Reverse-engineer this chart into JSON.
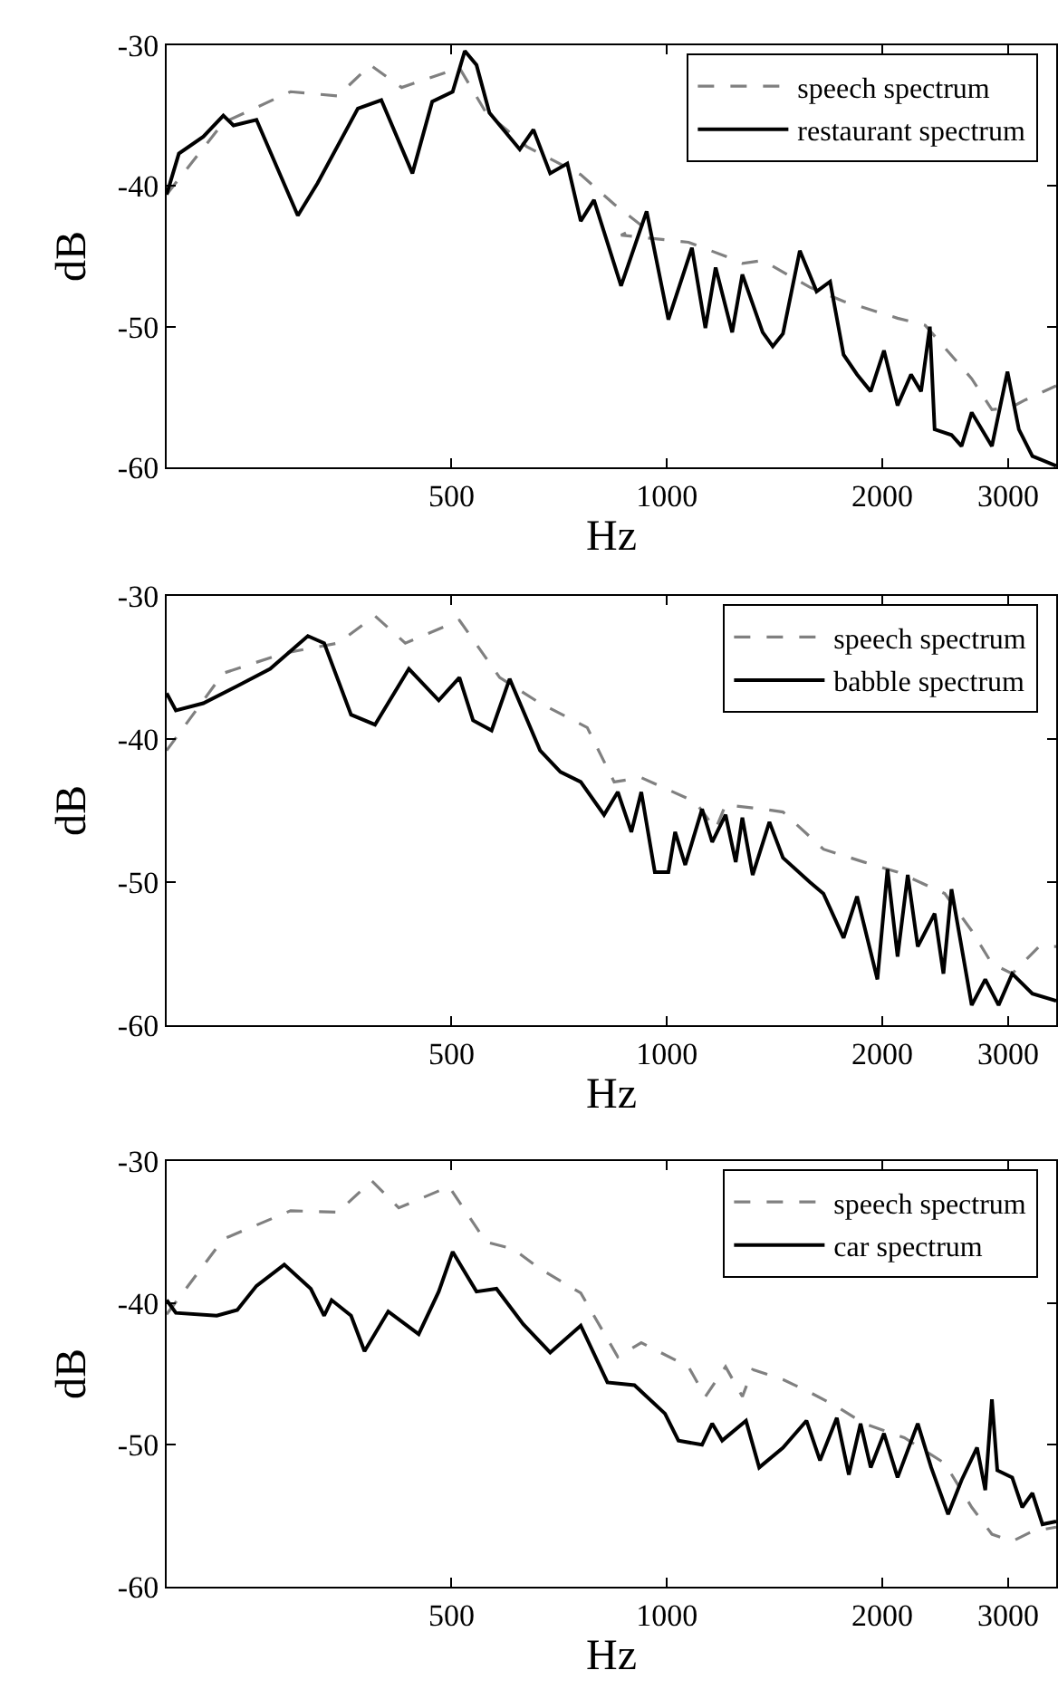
{
  "chart_data": [
    {
      "type": "line",
      "xlabel": "Hz",
      "ylabel": "dB",
      "log": "x",
      "grid": false,
      "legend": "top right",
      "xlim": [
        200,
        3500
      ],
      "xticks": [
        500,
        1000,
        2000,
        3000
      ],
      "ylim": [
        -60,
        -30
      ],
      "yticks": [
        -30,
        -40,
        -50,
        -60
      ],
      "series": [
        {
          "name": "speech spectrum",
          "color": "#808080",
          "line_style": "dashed",
          "x": [
            200,
            240,
            298,
            347,
            385,
            426,
            513,
            559,
            637,
            758,
            844,
            921,
            863,
            1072,
            1208,
            1275,
            1361,
            1584,
            1766,
            2101,
            2296,
            2667,
            2846,
            3038,
            3171,
            3500
          ],
          "values": [
            -40.6,
            -35.5,
            -33.3,
            -33.6,
            -31.4,
            -33,
            -31.6,
            -34.8,
            -37.2,
            -39.2,
            -41.3,
            -42.8,
            -43.5,
            -44,
            -45,
            -45.5,
            -45.3,
            -47.2,
            -48.2,
            -49.4,
            -49.9,
            -53.7,
            -55.9,
            -55.7,
            -55.2,
            -54.2
          ]
        },
        {
          "name": "restaurant spectrum",
          "color": "#000000",
          "line_style": "solid",
          "x": [
            200,
            208,
            225,
            240,
            248,
            267,
            305,
            325,
            370,
            399,
            441,
            470,
            502,
            522,
            542,
            565,
            623,
            651,
            687,
            726,
            758,
            791,
            863,
            937,
            1005,
            1084,
            1132,
            1170,
            1234,
            1275,
            1361,
            1406,
            1453,
            1534,
            1619,
            1691,
            1766,
            1844,
            1927,
            2011,
            2101,
            2194,
            2266,
            2331,
            2367,
            2499,
            2581,
            2667,
            2846,
            2992,
            3104,
            3242,
            3500
          ],
          "values": [
            -40.6,
            -37.7,
            -36.5,
            -35,
            -35.7,
            -35.3,
            -42.1,
            -39.8,
            -34.5,
            -33.9,
            -39.1,
            -34,
            -33.3,
            -30.4,
            -31.4,
            -34.8,
            -37.4,
            -36,
            -39.1,
            -38.4,
            -42.5,
            -41,
            -47.1,
            -41.8,
            -49.5,
            -44.4,
            -50.1,
            -45.8,
            -50.4,
            -46.3,
            -50.4,
            -51.4,
            -50.5,
            -44.6,
            -47.5,
            -46.8,
            -52,
            -53.4,
            -54.6,
            -51.7,
            -55.6,
            -53.4,
            -54.6,
            -50,
            -57.3,
            -57.7,
            -58.5,
            -56.1,
            -58.5,
            -53.2,
            -57.3,
            -59.2,
            -59.9
          ]
        }
      ]
    },
    {
      "type": "line",
      "xlabel": "Hz",
      "ylabel": "dB",
      "log": "x",
      "grid": false,
      "legend": "top right",
      "xlim": [
        200,
        3500
      ],
      "xticks": [
        500,
        1000,
        2000,
        3000
      ],
      "ylim": [
        -60,
        -30
      ],
      "yticks": [
        -30,
        -40,
        -50,
        -60
      ],
      "series": [
        {
          "name": "speech spectrum",
          "color": "#808080",
          "line_style": "dashed",
          "x": [
            200,
            240,
            292,
            347,
            391,
            431,
            513,
            584,
            665,
            774,
            844,
            921,
            1096,
            1170,
            1208,
            1361,
            1453,
            1655,
            1885,
            2101,
            2445,
            2667,
            2846,
            3038,
            3313,
            3500
          ],
          "values": [
            -40.8,
            -35.4,
            -34,
            -33.3,
            -31.4,
            -33.3,
            -31.7,
            -35.7,
            -37.5,
            -39.2,
            -43,
            -42.7,
            -44.4,
            -46.3,
            -44.6,
            -44.9,
            -45.1,
            -47.7,
            -48.6,
            -49.3,
            -50.8,
            -53.4,
            -55.7,
            -56.4,
            -54.5,
            -54.5
          ]
        },
        {
          "name": "babble spectrum",
          "color": "#000000",
          "line_style": "solid",
          "x": [
            200,
            206,
            225,
            251,
            279,
            315,
            332,
            362,
            391,
            436,
            480,
            513,
            536,
            569,
            603,
            665,
            710,
            758,
            817,
            854,
            892,
            921,
            962,
            1005,
            1027,
            1061,
            1120,
            1157,
            1208,
            1248,
            1275,
            1318,
            1391,
            1453,
            1584,
            1655,
            1766,
            1844,
            1969,
            2034,
            2101,
            2171,
            2242,
            2367,
            2435,
            2499,
            2667,
            2786,
            2908,
            3038,
            3242,
            3500
          ],
          "values": [
            -36.8,
            -38,
            -37.5,
            -36.3,
            -35.1,
            -32.8,
            -33.3,
            -38.3,
            -39,
            -35.1,
            -37.3,
            -35.7,
            -38.7,
            -39.4,
            -35.8,
            -40.8,
            -42.3,
            -43,
            -45.3,
            -43.7,
            -46.5,
            -43.7,
            -49.3,
            -49.3,
            -46.5,
            -48.8,
            -44.9,
            -47.2,
            -45.3,
            -48.6,
            -45.5,
            -49.5,
            -45.8,
            -48.3,
            -50,
            -50.8,
            -53.9,
            -51,
            -56.8,
            -49.1,
            -55.2,
            -49.5,
            -54.5,
            -52.2,
            -56.4,
            -50.5,
            -58.6,
            -56.8,
            -58.6,
            -56.4,
            -57.8,
            -58.3
          ]
        }
      ]
    },
    {
      "type": "line",
      "xlabel": "Hz",
      "ylabel": "dB",
      "log": "x",
      "grid": false,
      "legend": "top right",
      "xlim": [
        200,
        3500
      ],
      "xticks": [
        500,
        1000,
        2000,
        3000
      ],
      "ylim": [
        -60,
        -30
      ],
      "yticks": [
        -30,
        -40,
        -50,
        -60
      ],
      "series": [
        {
          "name": "speech spectrum",
          "color": "#808080",
          "line_style": "dashed",
          "x": [
            200,
            240,
            298,
            347,
            387,
            422,
            496,
            559,
            610,
            665,
            758,
            854,
            921,
            1072,
            1132,
            1208,
            1275,
            1318,
            1453,
            1584,
            1728,
            1885,
            2147,
            2445,
            2667,
            2846,
            3038,
            3242,
            3500
          ],
          "values": [
            -40.8,
            -35.5,
            -33.5,
            -33.6,
            -31.4,
            -33.3,
            -31.8,
            -35.7,
            -36.2,
            -37.6,
            -39.3,
            -43.8,
            -42.8,
            -44.5,
            -46.6,
            -44.5,
            -46.6,
            -44.7,
            -45.4,
            -46.3,
            -47.3,
            -48.5,
            -49.5,
            -51.3,
            -54.4,
            -56.3,
            -56.8,
            -56.1,
            -55.8
          ]
        },
        {
          "name": "car spectrum",
          "color": "#000000",
          "line_style": "solid",
          "x": [
            200,
            206,
            235,
            251,
            267,
            292,
            318,
            332,
            340,
            362,
            378,
            408,
            450,
            480,
            502,
            542,
            578,
            630,
            687,
            758,
            826,
            901,
            994,
            1038,
            1120,
            1157,
            1195,
            1290,
            1346,
            1453,
            1567,
            1637,
            1728,
            1796,
            1865,
            1927,
            2011,
            2101,
            2242,
            2341,
            2472,
            2581,
            2713,
            2786,
            2846,
            2896,
            3038,
            3138,
            3242,
            3349,
            3500
          ],
          "values": [
            -39.8,
            -40.7,
            -40.9,
            -40.5,
            -38.8,
            -37.3,
            -39,
            -40.9,
            -39.8,
            -40.9,
            -43.4,
            -40.6,
            -42.2,
            -39.2,
            -36.4,
            -39.2,
            -39,
            -41.5,
            -43.5,
            -41.6,
            -45.6,
            -45.8,
            -47.8,
            -49.7,
            -50,
            -48.5,
            -49.7,
            -48.3,
            -51.6,
            -50.2,
            -48.3,
            -51.1,
            -48.1,
            -52.1,
            -48.5,
            -51.6,
            -49.2,
            -52.3,
            -48.5,
            -51.6,
            -54.9,
            -52.5,
            -50.2,
            -53.2,
            -46.8,
            -51.8,
            -52.3,
            -54.4,
            -53.4,
            -55.6,
            -55.4
          ]
        }
      ]
    }
  ]
}
